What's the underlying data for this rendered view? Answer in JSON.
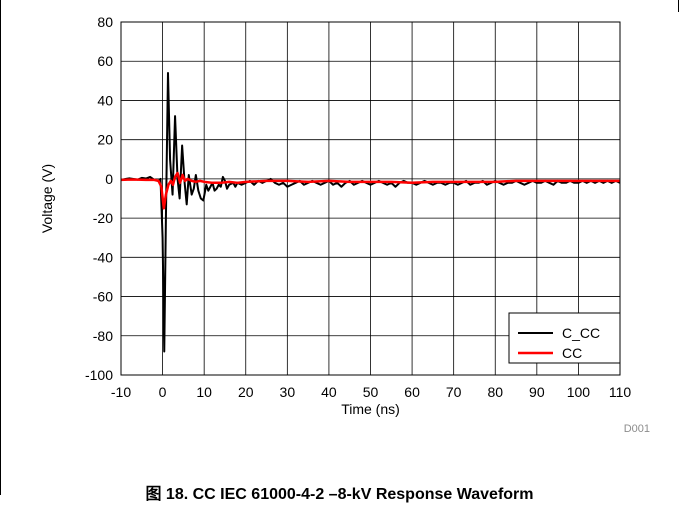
{
  "caption": "图 18. CC IEC 61000-4-2 –8-kV Response Waveform",
  "chart_code": "D001",
  "chart_data": {
    "type": "line",
    "title": "",
    "xlabel": "Time (ns)",
    "ylabel": "Voltage (V)",
    "xlim": [
      -10,
      110
    ],
    "ylim": [
      -100,
      80
    ],
    "xticks": [
      -10,
      0,
      10,
      20,
      30,
      40,
      50,
      60,
      70,
      80,
      90,
      100,
      110
    ],
    "yticks": [
      80,
      60,
      40,
      20,
      0,
      -20,
      -40,
      -60,
      -80,
      -100
    ],
    "xtick_labels": [
      "-10",
      "0",
      "10",
      "20",
      "30",
      "40",
      "50",
      "60",
      "70",
      "80",
      "90",
      "100",
      "110"
    ],
    "ytick_labels": [
      "80",
      "60",
      "40",
      "20",
      "0",
      "-20",
      "-40",
      "-60",
      "-80",
      "-100"
    ],
    "grid": true,
    "legend_position": "bottom-right",
    "series": [
      {
        "name": "C_CC",
        "color": "#000000",
        "points": [
          [
            -10,
            -0.5
          ],
          [
            -8,
            0.3
          ],
          [
            -6,
            -0.4
          ],
          [
            -5,
            0.5
          ],
          [
            -4,
            0.2
          ],
          [
            -3,
            1.0
          ],
          [
            -2,
            -0.5
          ],
          [
            -1,
            -1.0
          ],
          [
            -0.5,
            0
          ],
          [
            0,
            -30
          ],
          [
            0.4,
            -88
          ],
          [
            0.8,
            -20
          ],
          [
            1.3,
            54
          ],
          [
            1.8,
            10
          ],
          [
            2.4,
            -8
          ],
          [
            3.0,
            32
          ],
          [
            3.6,
            0
          ],
          [
            4.1,
            -10
          ],
          [
            4.7,
            17
          ],
          [
            5.3,
            -2
          ],
          [
            5.8,
            -13
          ],
          [
            6.3,
            2
          ],
          [
            7.0,
            -8
          ],
          [
            7.5,
            -5
          ],
          [
            8.0,
            2
          ],
          [
            8.6,
            -6
          ],
          [
            9.2,
            -10
          ],
          [
            9.8,
            -11
          ],
          [
            10.5,
            -3
          ],
          [
            11,
            -6
          ],
          [
            11.5,
            -4
          ],
          [
            12,
            -2
          ],
          [
            12.5,
            -6
          ],
          [
            13,
            -5
          ],
          [
            13.5,
            -3
          ],
          [
            14,
            -4
          ],
          [
            14.5,
            1
          ],
          [
            15,
            -1
          ],
          [
            15.5,
            -5
          ],
          [
            16,
            -3
          ],
          [
            17,
            -2
          ],
          [
            17.5,
            -4
          ],
          [
            18,
            -2
          ],
          [
            19,
            -3
          ],
          [
            20,
            -2
          ],
          [
            21,
            -1
          ],
          [
            22,
            -3
          ],
          [
            23,
            -1
          ],
          [
            24,
            -2
          ],
          [
            25,
            -1
          ],
          [
            26,
            0
          ],
          [
            27,
            -2
          ],
          [
            28,
            -3
          ],
          [
            29,
            -2
          ],
          [
            30,
            -4
          ],
          [
            31,
            -3
          ],
          [
            32,
            -2
          ],
          [
            33,
            -1
          ],
          [
            34,
            -3
          ],
          [
            35,
            -2
          ],
          [
            36,
            -1
          ],
          [
            37,
            -2
          ],
          [
            38,
            -3
          ],
          [
            39,
            -2
          ],
          [
            40,
            -1
          ],
          [
            41,
            -3
          ],
          [
            42,
            -2
          ],
          [
            43,
            -4
          ],
          [
            44,
            -2
          ],
          [
            45,
            -1
          ],
          [
            46,
            -3
          ],
          [
            47,
            -2
          ],
          [
            48,
            -1
          ],
          [
            49,
            -2
          ],
          [
            50,
            -3
          ],
          [
            51,
            -2
          ],
          [
            52,
            -1
          ],
          [
            53,
            -2
          ],
          [
            54,
            -3
          ],
          [
            55,
            -2
          ],
          [
            56,
            -4
          ],
          [
            57,
            -2
          ],
          [
            58,
            -1
          ],
          [
            59,
            -2
          ],
          [
            60,
            -2
          ],
          [
            61,
            -3
          ],
          [
            62,
            -2
          ],
          [
            63,
            -1
          ],
          [
            64,
            -2
          ],
          [
            65,
            -3
          ],
          [
            66,
            -2
          ],
          [
            67,
            -2
          ],
          [
            68,
            -3
          ],
          [
            69,
            -2
          ],
          [
            70,
            -2
          ],
          [
            71,
            -3
          ],
          [
            72,
            -2
          ],
          [
            73,
            -1
          ],
          [
            74,
            -3
          ],
          [
            75,
            -2
          ],
          [
            76,
            -2
          ],
          [
            77,
            -1
          ],
          [
            78,
            -3
          ],
          [
            79,
            -2
          ],
          [
            80,
            -1
          ],
          [
            81,
            -2
          ],
          [
            82,
            -3
          ],
          [
            83,
            -2
          ],
          [
            84,
            -2
          ],
          [
            85,
            -1
          ],
          [
            86,
            -2
          ],
          [
            87,
            -3
          ],
          [
            88,
            -2
          ],
          [
            89,
            -1
          ],
          [
            90,
            -2
          ],
          [
            91,
            -2
          ],
          [
            92,
            -1
          ],
          [
            93,
            -2
          ],
          [
            94,
            -3
          ],
          [
            95,
            -1
          ],
          [
            96,
            -2
          ],
          [
            97,
            -2
          ],
          [
            98,
            -1
          ],
          [
            99,
            -2
          ],
          [
            100,
            -2
          ],
          [
            101,
            -1
          ],
          [
            102,
            -2
          ],
          [
            103,
            -1
          ],
          [
            104,
            -2
          ],
          [
            105,
            -1
          ],
          [
            106,
            -2
          ],
          [
            107,
            -1
          ],
          [
            108,
            -2
          ],
          [
            109,
            -1
          ],
          [
            110,
            -2
          ]
        ]
      },
      {
        "name": "CC",
        "color": "#ff0000",
        "points": [
          [
            -10,
            -0.5
          ],
          [
            -7,
            -0.3
          ],
          [
            -4,
            -0.5
          ],
          [
            -2,
            -0.5
          ],
          [
            -1,
            -1
          ],
          [
            -0.3,
            -4
          ],
          [
            0.3,
            -15
          ],
          [
            0.8,
            -8
          ],
          [
            1.4,
            -3
          ],
          [
            2.0,
            -1
          ],
          [
            2.5,
            -3
          ],
          [
            3.0,
            1
          ],
          [
            3.6,
            3
          ],
          [
            4.2,
            -2
          ],
          [
            4.8,
            2
          ],
          [
            5.4,
            -1
          ],
          [
            6.0,
            0
          ],
          [
            7,
            -1
          ],
          [
            8,
            -1.5
          ],
          [
            9,
            -1
          ],
          [
            10,
            -1.5
          ],
          [
            12,
            -2
          ],
          [
            14,
            -2
          ],
          [
            16,
            -1.5
          ],
          [
            18,
            -2
          ],
          [
            20,
            -1.5
          ],
          [
            25,
            -1
          ],
          [
            30,
            -1
          ],
          [
            35,
            -1.5
          ],
          [
            40,
            -1
          ],
          [
            45,
            -1.5
          ],
          [
            50,
            -1.5
          ],
          [
            55,
            -1.5
          ],
          [
            60,
            -2
          ],
          [
            65,
            -1.5
          ],
          [
            70,
            -1.5
          ],
          [
            75,
            -1.5
          ],
          [
            80,
            -1.5
          ],
          [
            85,
            -1
          ],
          [
            90,
            -1
          ],
          [
            95,
            -1
          ],
          [
            100,
            -1
          ],
          [
            105,
            -1
          ],
          [
            110,
            -1
          ]
        ]
      }
    ]
  }
}
